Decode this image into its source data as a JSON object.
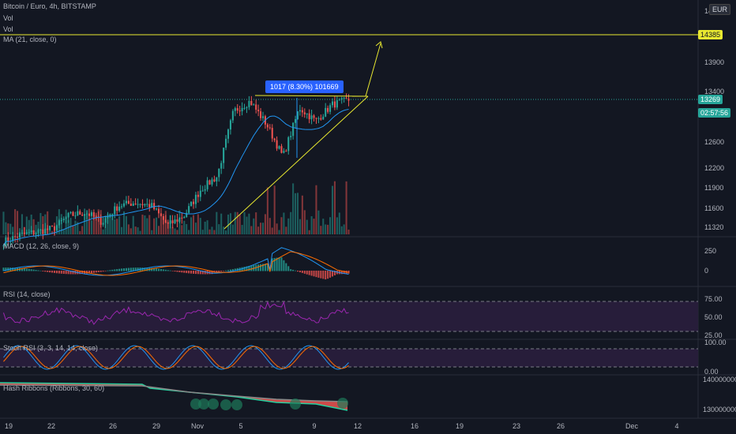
{
  "header": {
    "title": "Bitcoin / Euro, 4h, BITSTAMP",
    "vol1": "Vol",
    "vol2": "Vol",
    "ma": "MA (21, close, 0)"
  },
  "currency": "EUR",
  "price_badges": {
    "resistance": "14385",
    "last": "13269",
    "countdown": "02:57:56"
  },
  "measure_label": "1017 (8.30%) 101669",
  "colors": {
    "background": "#131722",
    "up": "#26a69a",
    "down": "#ef5350",
    "ma": "#2196f3",
    "drawing": "#e8e830",
    "macd": "#2196f3",
    "signal": "#ff6d00",
    "rsi": "#9c27b0",
    "stoch_k": "#2196f3",
    "stoch_d": "#ff6d00",
    "band": "#2a1e3d",
    "ribbon_fast": "#26d0a0",
    "ribbon_slow": "#888888"
  },
  "panes": {
    "macd": "MACD (12, 26, close, 9)",
    "rsi": "RSI (14, close)",
    "stoch": "Stoch RSI (3, 3, 14, 14, close)",
    "hash": "Hash Ribbons (Ribbons, 30, 60)"
  },
  "chart_data": [
    {
      "type": "candlestick",
      "title": "Bitcoin / Euro, 4h, BITSTAMP",
      "y_ticks": [
        "14",
        "13900",
        "13400",
        "12600",
        "12200",
        "11900",
        "11600",
        "11320"
      ],
      "x_ticks": [
        "19",
        "22",
        "26",
        "29",
        "Nov",
        "5",
        "9",
        "12",
        "16",
        "19",
        "23",
        "26",
        "Dec",
        "4"
      ],
      "ylim": [
        11250,
        14550
      ],
      "resistance": 14385,
      "last": 13269,
      "ma_period": 21,
      "ohlc_keypoints": [
        [
          "Oct 19",
          11100
        ],
        [
          "Oct 21",
          11200
        ],
        [
          "Oct 23",
          11250
        ],
        [
          "Oct 25",
          11300
        ],
        [
          "Oct 27",
          11500
        ],
        [
          "Oct 28",
          11550
        ],
        [
          "Oct 29",
          11400
        ],
        [
          "Oct 30",
          11650
        ],
        [
          "Oct 31",
          11700
        ],
        [
          "Nov 1",
          11650
        ],
        [
          "Nov 2",
          11350
        ],
        [
          "Nov 3",
          11500
        ],
        [
          "Nov 4",
          11900
        ],
        [
          "Nov 5",
          12100
        ],
        [
          "Nov 6",
          13100
        ],
        [
          "Nov 7",
          13250
        ],
        [
          "Nov 8",
          12900
        ],
        [
          "Nov 8.5",
          12400
        ],
        [
          "Nov 9",
          13150
        ],
        [
          "Nov 10",
          12950
        ],
        [
          "Nov 11",
          13200
        ],
        [
          "Nov 11.5",
          13269
        ]
      ]
    },
    {
      "type": "line",
      "title": "MACD (12, 26, close, 9)",
      "y_ticks": [
        "250",
        "0"
      ]
    },
    {
      "type": "line",
      "title": "RSI (14, close)",
      "y_ticks": [
        "75.00",
        "50.00",
        "25.00"
      ]
    },
    {
      "type": "line",
      "title": "Stoch RSI (3, 3, 14, 14, close)",
      "y_ticks": [
        "100.00",
        "0.00"
      ]
    },
    {
      "type": "area",
      "title": "Hash Ribbons (Ribbons, 30, 60)",
      "y_ticks": [
        "140000000",
        "130000000"
      ]
    }
  ]
}
